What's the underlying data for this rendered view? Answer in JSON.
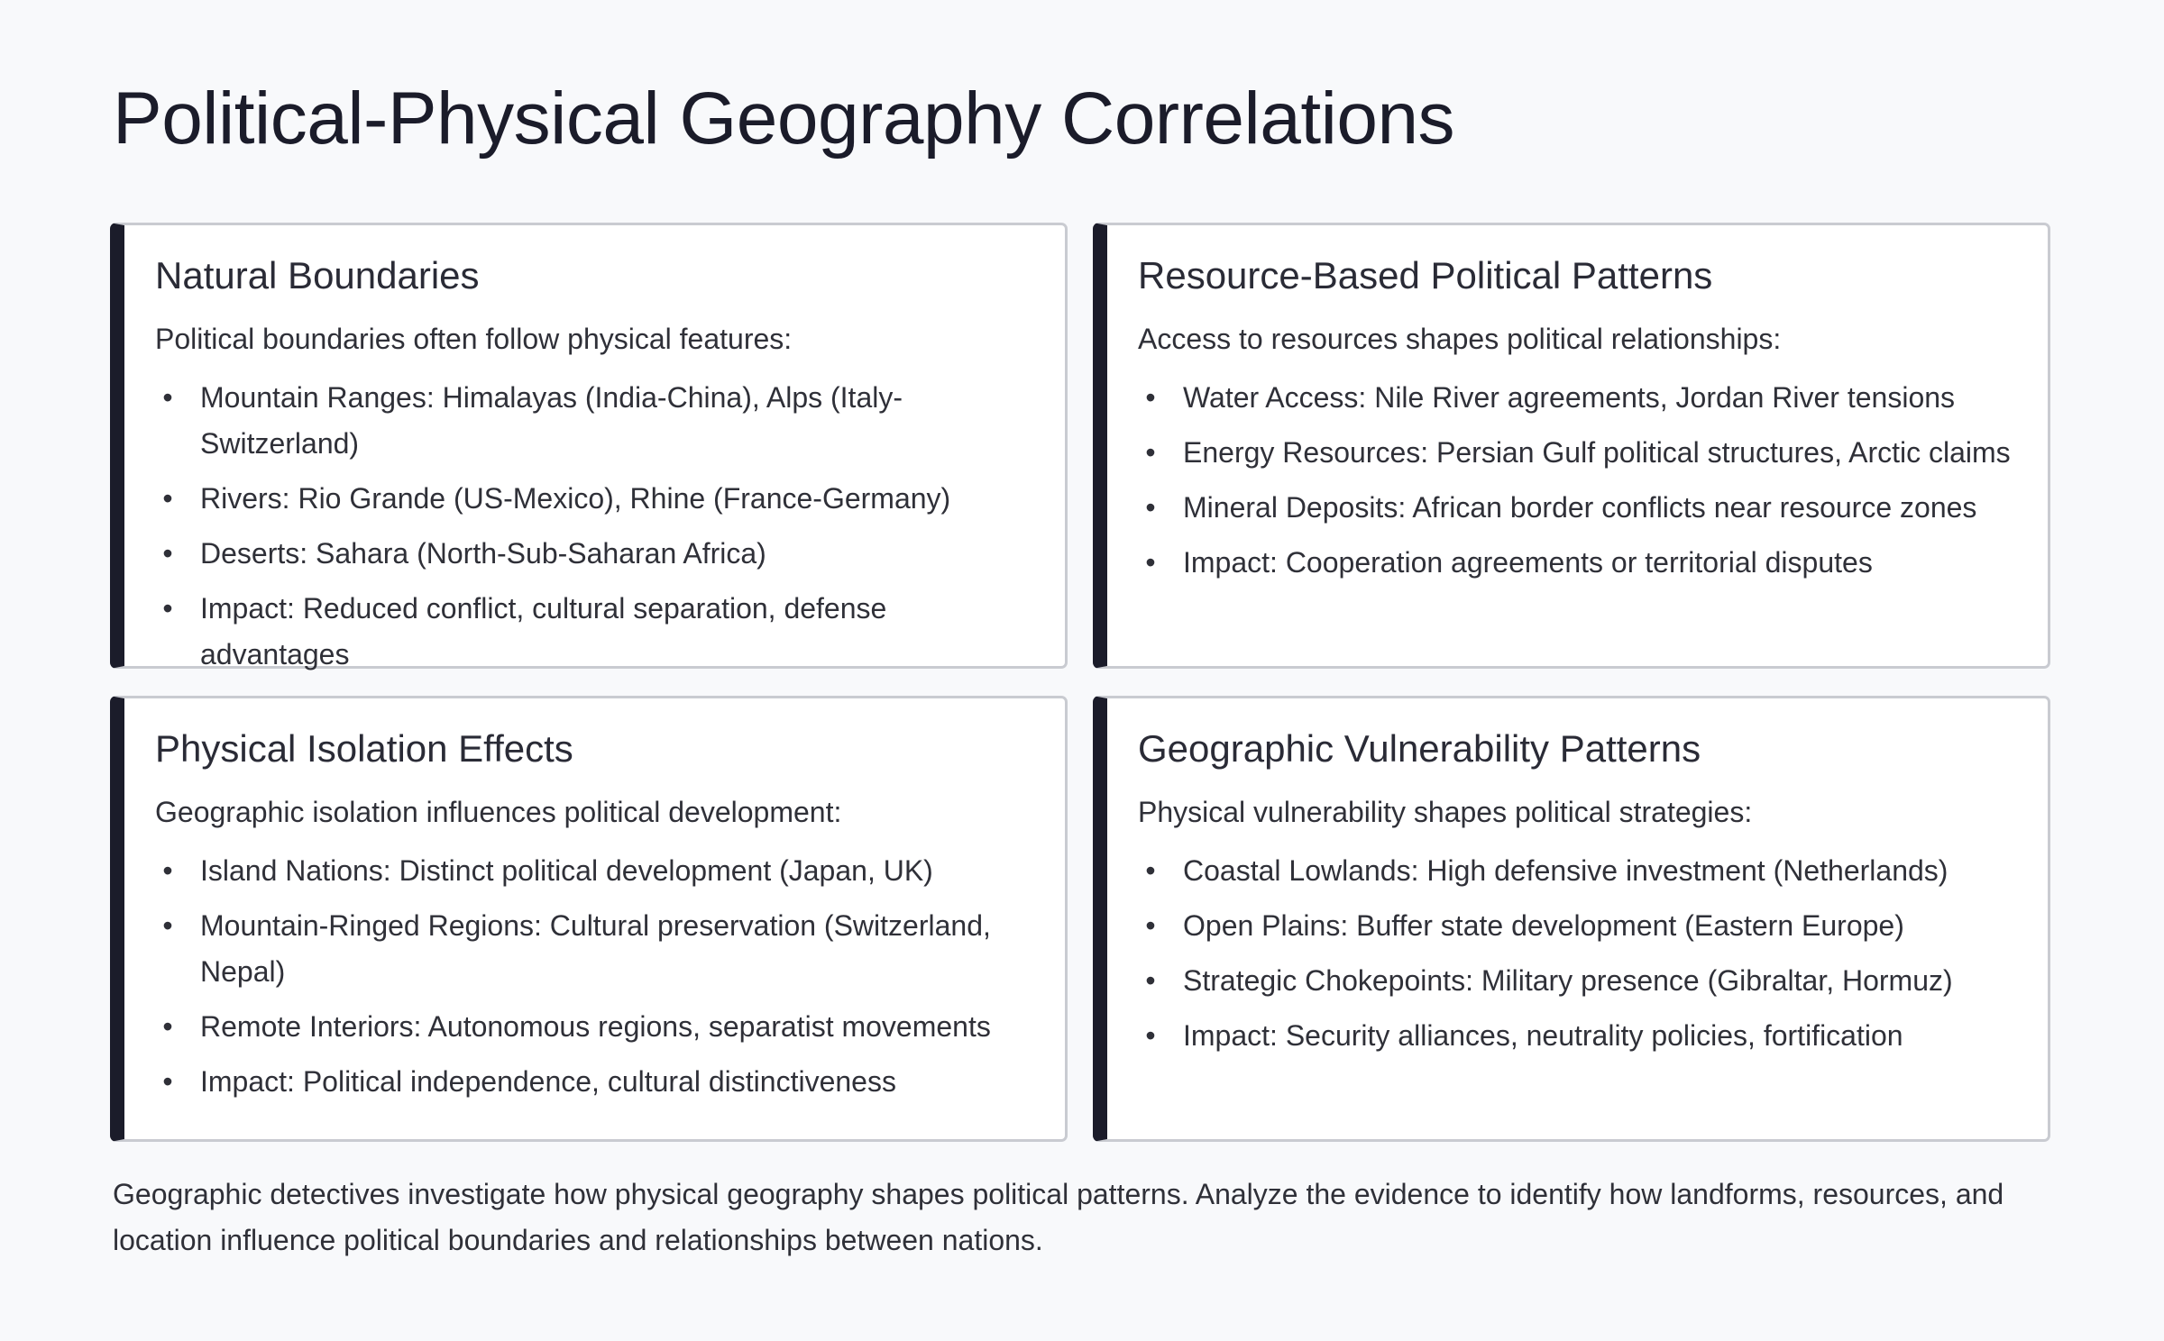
{
  "title": "Political-Physical Geography Correlations",
  "cards": [
    {
      "title": "Natural Boundaries",
      "intro": "Political boundaries often follow physical features:",
      "items": [
        "Mountain Ranges: Himalayas (India-China), Alps (Italy-Switzerland)",
        "Rivers: Rio Grande (US-Mexico), Rhine (France-Germany)",
        "Deserts: Sahara (North-Sub-Saharan Africa)",
        "Impact: Reduced conflict, cultural separation, defense advantages"
      ]
    },
    {
      "title": "Resource-Based Political Patterns",
      "intro": "Access to resources shapes political relationships:",
      "items": [
        "Water Access: Nile River agreements, Jordan River tensions",
        "Energy Resources: Persian Gulf political structures, Arctic claims",
        "Mineral Deposits: African border conflicts near resource zones",
        "Impact: Cooperation agreements or territorial disputes"
      ]
    },
    {
      "title": "Physical Isolation Effects",
      "intro": "Geographic isolation influences political development:",
      "items": [
        "Island Nations: Distinct political development (Japan, UK)",
        "Mountain-Ringed Regions: Cultural preservation (Switzerland, Nepal)",
        "Remote Interiors: Autonomous regions, separatist movements",
        "Impact: Political independence, cultural distinctiveness"
      ]
    },
    {
      "title": "Geographic Vulnerability Patterns",
      "intro": "Physical vulnerability shapes political strategies:",
      "items": [
        "Coastal Lowlands: High defensive investment (Netherlands)",
        "Open Plains: Buffer state development (Eastern Europe)",
        "Strategic Chokepoints: Military presence (Gibraltar, Hormuz)",
        "Impact: Security alliances, neutrality policies, fortification"
      ]
    }
  ],
  "footer": "Geographic detectives investigate how physical geography shapes political patterns. Analyze the evidence to identify how landforms, resources, and location influence political boundaries and relationships between nations."
}
